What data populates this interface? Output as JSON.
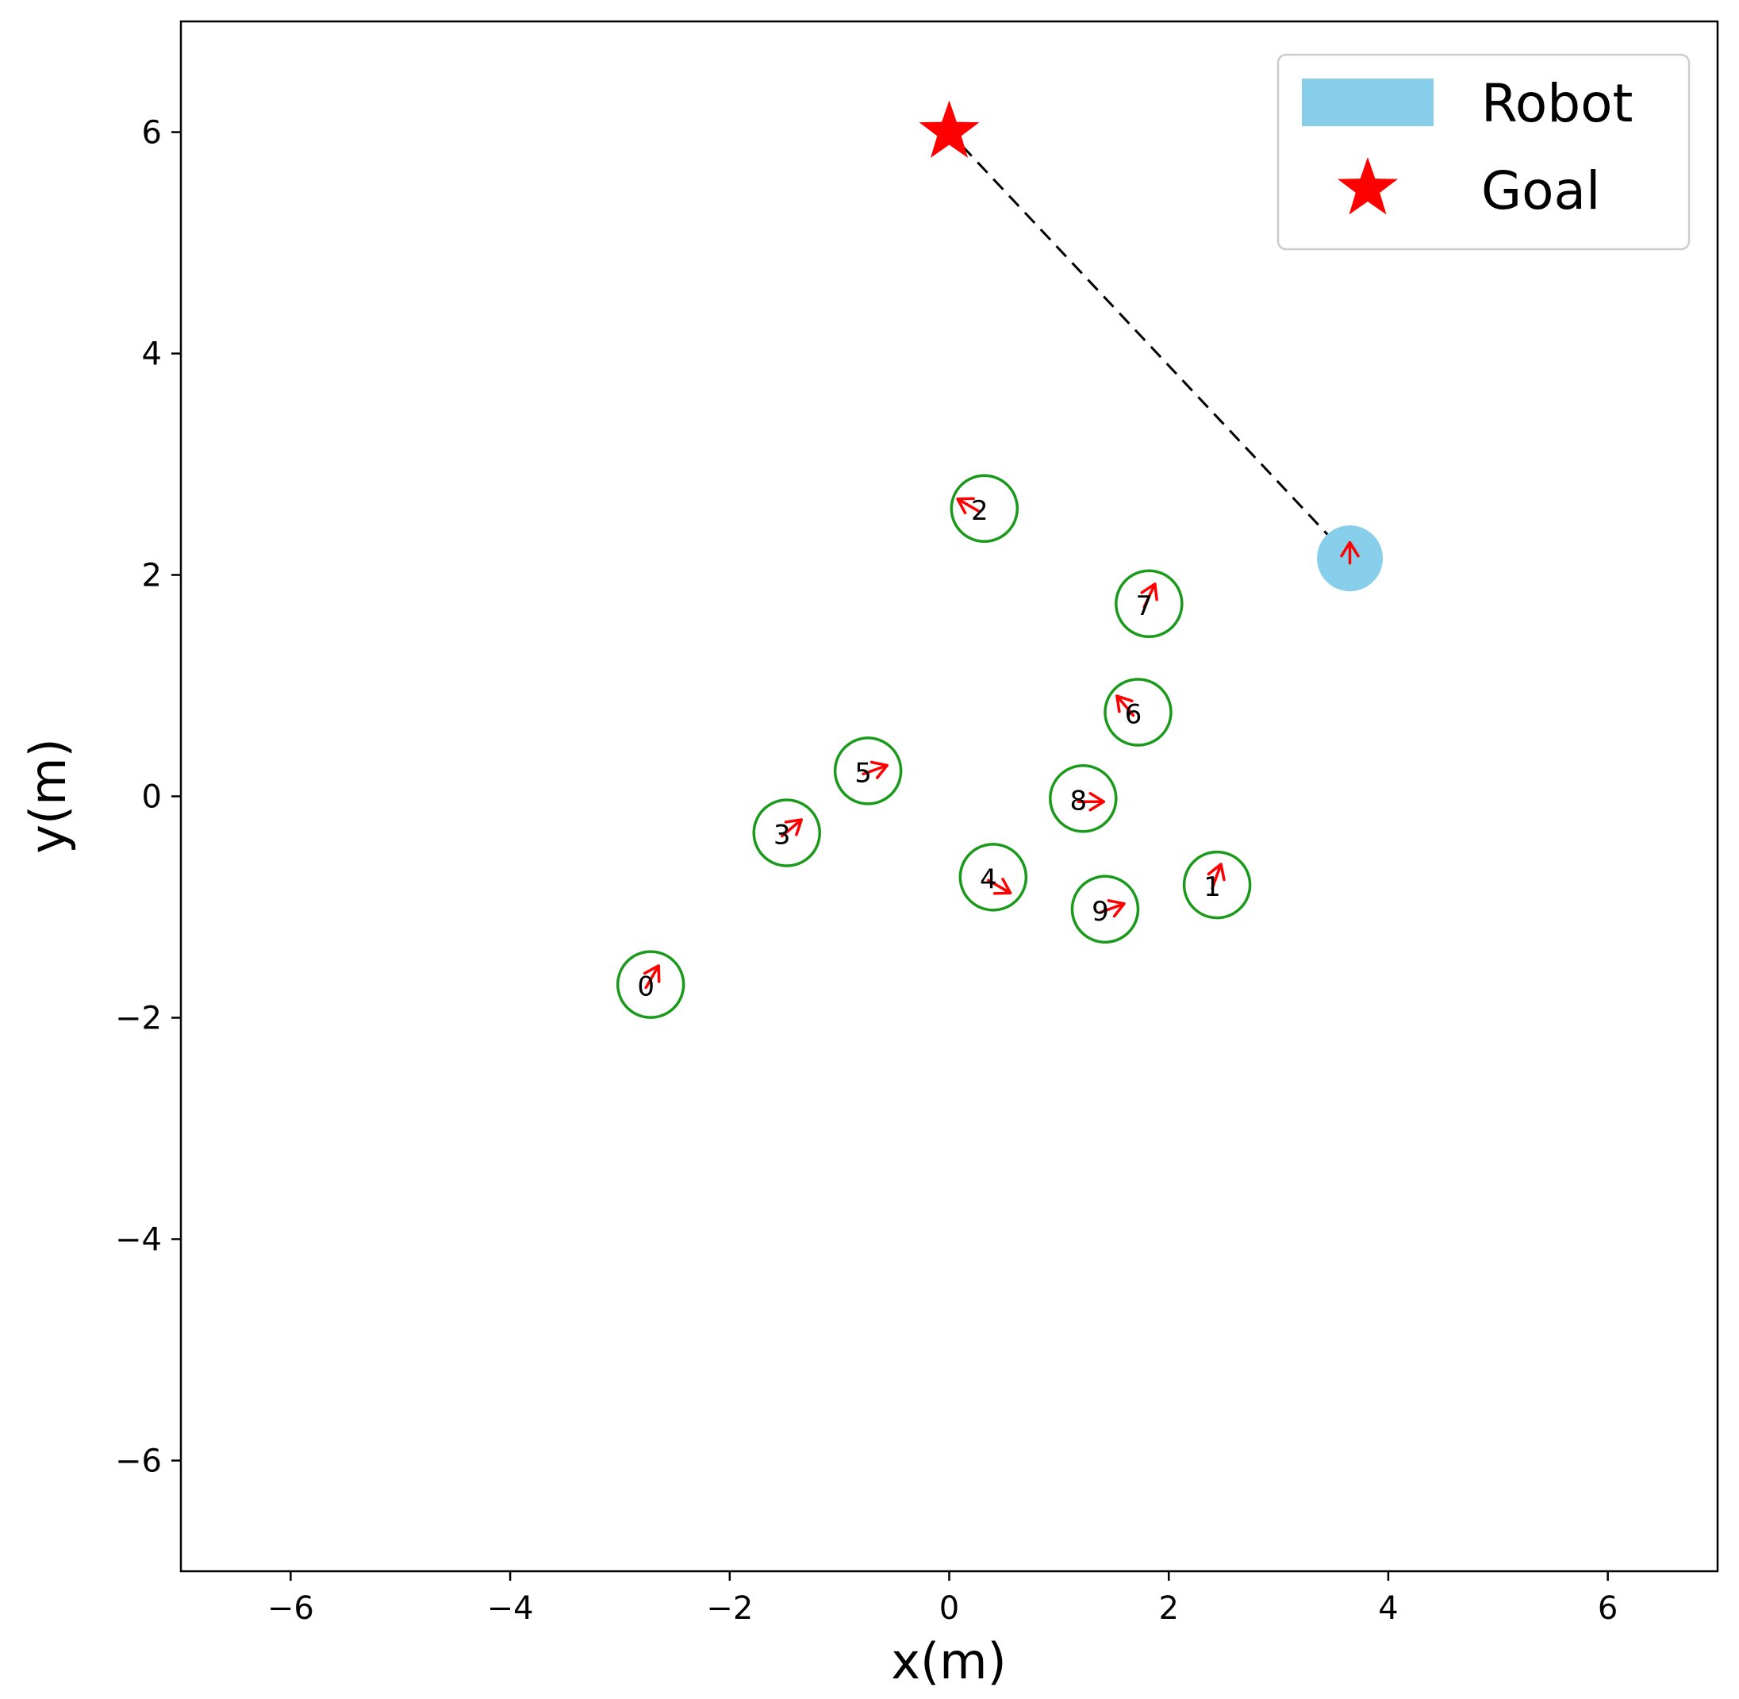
{
  "chart_data": {
    "type": "scatter",
    "xlabel": "x(m)",
    "ylabel": "y(m)",
    "xlim": [
      -7,
      7
    ],
    "ylim": [
      -7,
      7
    ],
    "xticks": [
      -6,
      -4,
      -2,
      0,
      2,
      4,
      6
    ],
    "yticks": [
      -6,
      -4,
      -2,
      0,
      2,
      4,
      6
    ],
    "xtick_labels": [
      "−6",
      "−4",
      "−2",
      "0",
      "2",
      "4",
      "6"
    ],
    "ytick_labels": [
      "−6",
      "−4",
      "−2",
      "0",
      "2",
      "4",
      "6"
    ],
    "grid": false,
    "legend": {
      "placement": "top-right",
      "entries": [
        {
          "label": "Robot",
          "marker": "patch",
          "color": "#87CEEB"
        },
        {
          "label": "Goal",
          "marker": "star",
          "color": "#FF0000"
        }
      ]
    },
    "robot": {
      "x": 3.65,
      "y": 2.15,
      "radius": 0.3,
      "heading_deg": 90,
      "color": "#87CEEB"
    },
    "goal": {
      "x": 0.0,
      "y": 6.0,
      "color": "#FF0000"
    },
    "robot_to_goal_line": {
      "style": "dashed",
      "color": "#000000"
    },
    "pedestrians": [
      {
        "id": "0",
        "x": -2.72,
        "y": -1.7,
        "heading_deg": 60
      },
      {
        "id": "1",
        "x": 2.44,
        "y": -0.8,
        "heading_deg": 70
      },
      {
        "id": "2",
        "x": 0.32,
        "y": 2.6,
        "heading_deg": 150
      },
      {
        "id": "3",
        "x": -1.48,
        "y": -0.33,
        "heading_deg": 40
      },
      {
        "id": "4",
        "x": 0.4,
        "y": -0.73,
        "heading_deg": 330
      },
      {
        "id": "5",
        "x": -0.74,
        "y": 0.23,
        "heading_deg": 20
      },
      {
        "id": "6",
        "x": 1.72,
        "y": 0.76,
        "heading_deg": 130
      },
      {
        "id": "7",
        "x": 1.82,
        "y": 1.74,
        "heading_deg": 65
      },
      {
        "id": "8",
        "x": 1.22,
        "y": -0.02,
        "heading_deg": 0
      },
      {
        "id": "9",
        "x": 1.42,
        "y": -1.02,
        "heading_deg": 20
      }
    ],
    "pedestrian_radius": 0.3,
    "pedestrian_edge_color": "#1A9A1A",
    "heading_arrow_color": "#FF0000"
  }
}
